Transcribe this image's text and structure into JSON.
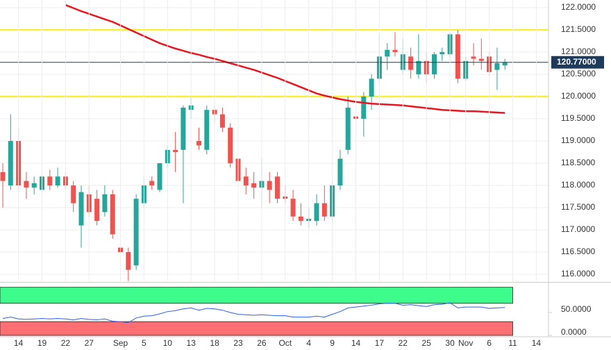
{
  "chart_data": [
    {
      "type": "candlestick",
      "ylim": [
        115.8,
        122.2
      ],
      "yticks": [
        {
          "value": 116.0,
          "label": "116.0000"
        },
        {
          "value": 116.5,
          "label": "116.5000"
        },
        {
          "value": 117.0,
          "label": "117.0000"
        },
        {
          "value": 117.5,
          "label": "117.5000"
        },
        {
          "value": 118.0,
          "label": "118.0000"
        },
        {
          "value": 118.5,
          "label": "118.5000"
        },
        {
          "value": 119.0,
          "label": "119.0000"
        },
        {
          "value": 119.5,
          "label": "119.5000"
        },
        {
          "value": 120.0,
          "label": "120.0000"
        },
        {
          "value": 120.5,
          "label": "120.5000"
        },
        {
          "value": 121.0,
          "label": "121.0000"
        },
        {
          "value": 121.5,
          "label": "121.5000"
        },
        {
          "value": 122.0,
          "label": "122.0000"
        }
      ],
      "up_color": "#26a69a",
      "down_color": "#ef5350",
      "open": [
        118.3,
        118.0,
        119.0,
        118.1,
        117.95,
        117.9,
        118.2,
        118.0,
        118.2,
        118.0,
        117.1,
        117.8,
        117.7,
        117.4,
        117.8,
        116.6,
        116.5,
        116.2,
        117.6,
        118.1,
        117.9,
        118.5,
        118.8,
        118.8,
        119.7,
        119.0,
        118.8,
        119.7,
        119.6,
        119.3,
        118.6,
        118.2,
        118.05,
        117.95,
        118.1,
        118.2,
        117.75,
        117.7,
        117.3,
        117.2,
        117.2,
        117.6,
        117.3,
        118.0,
        118.8,
        119.55,
        119.5,
        120.0,
        120.4,
        120.9,
        121.05,
        120.6,
        120.9,
        120.5,
        120.8,
        120.5,
        120.95,
        120.95,
        121.4,
        120.4,
        120.9,
        120.85,
        120.9,
        120.6,
        120.7,
        null,
        null,
        null,
        null
      ],
      "high": [
        118.5,
        119.6,
        119.3,
        118.3,
        118.2,
        118.5,
        118.35,
        118.4,
        118.3,
        118.1,
        118.0,
        118.0,
        117.9,
        118.0,
        117.9,
        116.8,
        116.6,
        117.8,
        118.2,
        118.2,
        118.5,
        118.9,
        119.2,
        119.8,
        120.0,
        119.3,
        119.8,
        119.8,
        119.75,
        119.4,
        118.7,
        118.4,
        118.3,
        118.6,
        118.3,
        118.3,
        118.0,
        117.9,
        117.6,
        117.5,
        117.8,
        118.0,
        118.1,
        118.8,
        120.0,
        119.8,
        120.1,
        120.5,
        121.4,
        121.2,
        121.45,
        121.3,
        121.1,
        121.4,
        121.0,
        121.0,
        121.1,
        121.45,
        121.5,
        120.9,
        121.2,
        121.3,
        121.0,
        121.1,
        120.85,
        null,
        null,
        null,
        null
      ],
      "low": [
        117.5,
        117.9,
        117.9,
        117.7,
        117.8,
        117.8,
        117.9,
        117.95,
        117.9,
        117.4,
        116.6,
        117.3,
        117.1,
        117.3,
        116.8,
        116.4,
        115.85,
        116.1,
        117.5,
        117.9,
        117.85,
        118.4,
        118.3,
        117.6,
        119.5,
        118.8,
        118.7,
        119.4,
        119.2,
        118.4,
        117.9,
        117.8,
        117.7,
        117.5,
        117.6,
        117.6,
        117.6,
        117.2,
        117.1,
        117.05,
        117.1,
        117.2,
        117.2,
        117.9,
        118.7,
        119.3,
        119.1,
        119.7,
        120.3,
        120.6,
        120.9,
        120.5,
        120.4,
        120.4,
        120.3,
        120.4,
        120.8,
        120.8,
        120.3,
        120.35,
        120.7,
        120.6,
        120.45,
        120.15,
        120.6,
        null,
        null,
        null,
        null
      ],
      "close": [
        118.1,
        119.0,
        118.0,
        117.95,
        118.05,
        118.2,
        118.0,
        118.2,
        118.0,
        117.6,
        117.85,
        117.4,
        117.2,
        117.8,
        116.9,
        116.5,
        116.1,
        117.7,
        118.0,
        118.0,
        118.5,
        118.8,
        118.75,
        119.75,
        119.8,
        118.9,
        119.7,
        119.6,
        119.3,
        118.5,
        118.1,
        118.0,
        117.95,
        118.1,
        117.9,
        117.7,
        117.7,
        117.3,
        117.2,
        117.25,
        117.6,
        117.3,
        118.0,
        118.6,
        119.75,
        119.5,
        120.0,
        120.4,
        120.9,
        121.05,
        121.0,
        120.95,
        120.6,
        120.8,
        120.5,
        120.95,
        121.0,
        121.4,
        120.4,
        120.8,
        120.85,
        120.8,
        120.55,
        120.75,
        120.77,
        null,
        null,
        null,
        null
      ],
      "moving_average": {
        "color": "#e8141e",
        "values": [
          null,
          null,
          null,
          null,
          null,
          null,
          null,
          null,
          122.06,
          121.99,
          121.92,
          121.86,
          121.8,
          121.74,
          121.68,
          121.6,
          121.52,
          121.44,
          121.36,
          121.28,
          121.2,
          121.14,
          121.08,
          121.03,
          120.98,
          120.94,
          120.89,
          120.85,
          120.8,
          120.75,
          120.7,
          120.65,
          120.6,
          120.54,
          120.48,
          120.42,
          120.35,
          120.28,
          120.21,
          120.14,
          120.07,
          120.02,
          119.98,
          119.94,
          119.91,
          119.88,
          119.86,
          119.84,
          119.83,
          119.82,
          119.81,
          119.8,
          119.78,
          119.76,
          119.74,
          119.72,
          119.7,
          119.69,
          119.68,
          119.67,
          119.67,
          119.66,
          119.65,
          119.64,
          119.63,
          null,
          null,
          null,
          null
        ]
      },
      "hlines": [
        {
          "value": 121.5,
          "color": "#f7ef3a"
        },
        {
          "value": 120.0,
          "color": "#f7ef3a"
        }
      ],
      "last_price": 120.77,
      "last_price_label": "120.77000",
      "last_price_color": "#1f3b5c"
    },
    {
      "type": "line",
      "categories": [
        null,
        null,
        "14",
        null,
        null,
        "19",
        null,
        null,
        "22",
        null,
        null,
        "27",
        null,
        null,
        null,
        "Sep",
        null,
        null,
        "5",
        null,
        null,
        "10",
        null,
        null,
        "13",
        null,
        null,
        "18",
        null,
        null,
        "23",
        null,
        null,
        "26",
        null,
        null,
        "Oct",
        null,
        null,
        "4",
        null,
        null,
        "9",
        null,
        null,
        "14",
        null,
        null,
        "17",
        null,
        null,
        "22",
        null,
        null,
        "25",
        null,
        null,
        "30",
        null,
        "Nov",
        null,
        null,
        "6",
        null,
        null,
        "11",
        null,
        null,
        "14"
      ],
      "ylim": [
        0,
        110
      ],
      "yticks": [
        {
          "value": 0,
          "label": "0.0000"
        },
        {
          "value": 50,
          "label": "50.0000"
        }
      ],
      "bands": [
        {
          "from": 70,
          "to": 105,
          "color": "#3dfc8c"
        },
        {
          "from": 0,
          "to": 30,
          "color": "#fd6f73"
        }
      ],
      "series": [
        {
          "color": "#2d5de8",
          "values": [
            37,
            40,
            36,
            35,
            36,
            37,
            36,
            37,
            36,
            34,
            37,
            35,
            34,
            36,
            31,
            30,
            28,
            38,
            42,
            43,
            47,
            52,
            54,
            58,
            60,
            55,
            59,
            58,
            55,
            50,
            46,
            45,
            44,
            45,
            44,
            43,
            43,
            40,
            40,
            40,
            42,
            40,
            46,
            52,
            60,
            62,
            64,
            66,
            69,
            70,
            70,
            66,
            67,
            65,
            63,
            67,
            68,
            71,
            60,
            62,
            62,
            62,
            59,
            60,
            61,
            null,
            null,
            null,
            null
          ]
        }
      ]
    }
  ]
}
